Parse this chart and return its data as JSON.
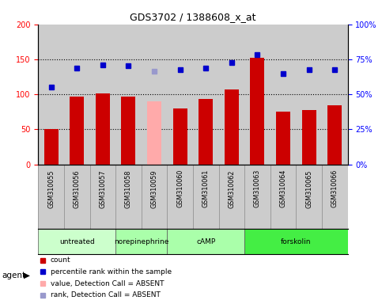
{
  "title": "GDS3702 / 1388608_x_at",
  "samples": [
    "GSM310055",
    "GSM310056",
    "GSM310057",
    "GSM310058",
    "GSM310059",
    "GSM310060",
    "GSM310061",
    "GSM310062",
    "GSM310063",
    "GSM310064",
    "GSM310065",
    "GSM310066"
  ],
  "bar_values": [
    50,
    97,
    101,
    97,
    90,
    80,
    93,
    107,
    152,
    75,
    78,
    84
  ],
  "bar_colors": [
    "#cc0000",
    "#cc0000",
    "#cc0000",
    "#cc0000",
    "#ffaaaa",
    "#cc0000",
    "#cc0000",
    "#cc0000",
    "#cc0000",
    "#cc0000",
    "#cc0000",
    "#cc0000"
  ],
  "rank_values": [
    55,
    68.5,
    71,
    70.5,
    66.5,
    67.5,
    69,
    73,
    78.5,
    65,
    67.5,
    67.5
  ],
  "rank_colors": [
    "#0000cc",
    "#0000cc",
    "#0000cc",
    "#0000cc",
    "#9999cc",
    "#0000cc",
    "#0000cc",
    "#0000cc",
    "#0000cc",
    "#0000cc",
    "#0000cc",
    "#0000cc"
  ],
  "ylim_left": [
    0,
    200
  ],
  "ylim_right": [
    0,
    100
  ],
  "yticks_left": [
    0,
    50,
    100,
    150,
    200
  ],
  "ytick_labels_left": [
    "0",
    "50",
    "100",
    "150",
    "200"
  ],
  "yticks_right": [
    0,
    25,
    50,
    75,
    100
  ],
  "ytick_labels_right": [
    "0%",
    "25%",
    "50%",
    "75%",
    "100%"
  ],
  "hlines": [
    50,
    100,
    150
  ],
  "agent_groups": [
    {
      "label": "untreated",
      "start": 0,
      "end": 3,
      "color": "#ccffcc"
    },
    {
      "label": "norepinephrine",
      "start": 3,
      "end": 5,
      "color": "#aaffaa"
    },
    {
      "label": "cAMP",
      "start": 5,
      "end": 8,
      "color": "#aaffaa"
    },
    {
      "label": "forskolin",
      "start": 8,
      "end": 12,
      "color": "#44ee44"
    }
  ],
  "legend_items": [
    {
      "label": "count",
      "color": "#cc0000"
    },
    {
      "label": "percentile rank within the sample",
      "color": "#0000cc"
    },
    {
      "label": "value, Detection Call = ABSENT",
      "color": "#ffaaaa"
    },
    {
      "label": "rank, Detection Call = ABSENT",
      "color": "#9999cc"
    }
  ],
  "col_bg_color": "#cccccc",
  "plot_bg_color": "#ffffff",
  "fig_bg_color": "#ffffff"
}
